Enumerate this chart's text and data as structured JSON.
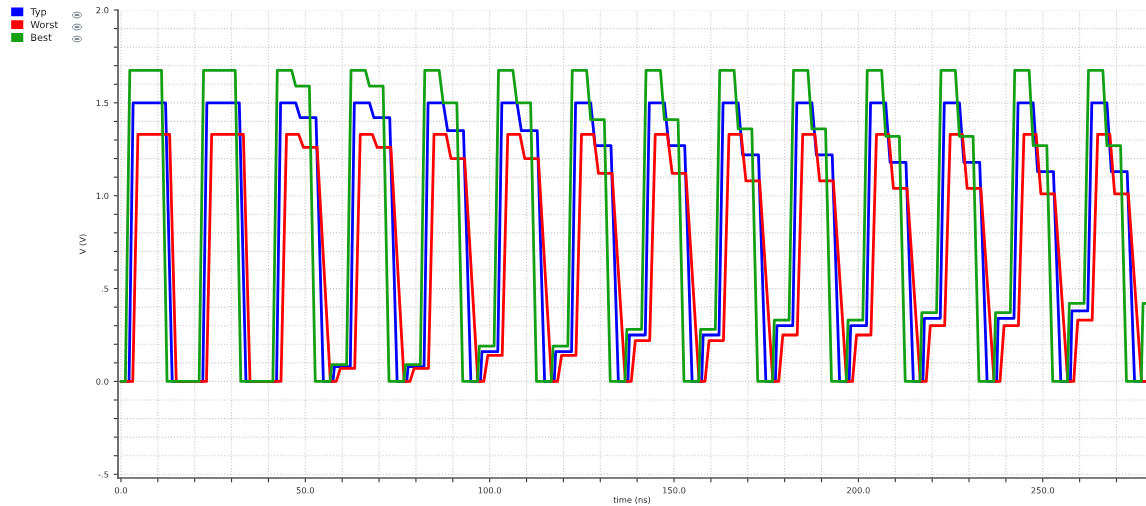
{
  "chart_data": {
    "type": "line",
    "xlabel": "time (ns)",
    "ylabel": "V (V)",
    "legend": "top left",
    "grid": true,
    "marker": "none",
    "line_style": "solid",
    "xlim": [
      -0.8,
      278
    ],
    "ylim": [
      -0.52,
      2.0
    ],
    "xticks": [
      {
        "value": 0,
        "label": "0.0"
      },
      {
        "value": 10,
        "label": null
      },
      {
        "value": 20,
        "label": null
      },
      {
        "value": 30,
        "label": null
      },
      {
        "value": 40,
        "label": null
      },
      {
        "value": 50,
        "label": "50.0"
      },
      {
        "value": 60,
        "label": null
      },
      {
        "value": 70,
        "label": null
      },
      {
        "value": 80,
        "label": null
      },
      {
        "value": 90,
        "label": null
      },
      {
        "value": 100,
        "label": "100.0"
      },
      {
        "value": 110,
        "label": null
      },
      {
        "value": 120,
        "label": null
      },
      {
        "value": 130,
        "label": null
      },
      {
        "value": 140,
        "label": null
      },
      {
        "value": 150,
        "label": "150.0"
      },
      {
        "value": 160,
        "label": null
      },
      {
        "value": 170,
        "label": null
      },
      {
        "value": 180,
        "label": null
      },
      {
        "value": 190,
        "label": null
      },
      {
        "value": 200,
        "label": "200.0"
      },
      {
        "value": 210,
        "label": null
      },
      {
        "value": 220,
        "label": null
      },
      {
        "value": 230,
        "label": null
      },
      {
        "value": 240,
        "label": null
      },
      {
        "value": 250,
        "label": "250.0"
      },
      {
        "value": 260,
        "label": null
      },
      {
        "value": 270,
        "label": null
      }
    ],
    "yticks": [
      {
        "value": -0.5,
        "label": "-.5"
      },
      {
        "value": -0.4,
        "label": null
      },
      {
        "value": -0.3,
        "label": null
      },
      {
        "value": -0.2,
        "label": null
      },
      {
        "value": -0.1,
        "label": null
      },
      {
        "value": 0,
        "label": "0.0"
      },
      {
        "value": 0.1,
        "label": null
      },
      {
        "value": 0.2,
        "label": null
      },
      {
        "value": 0.3,
        "label": null
      },
      {
        "value": 0.4,
        "label": null
      },
      {
        "value": 0.5,
        "label": ".5"
      },
      {
        "value": 0.6,
        "label": null
      },
      {
        "value": 0.7,
        "label": null
      },
      {
        "value": 0.8,
        "label": null
      },
      {
        "value": 0.9,
        "label": null
      },
      {
        "value": 1.0,
        "label": "1.0"
      },
      {
        "value": 1.1,
        "label": null
      },
      {
        "value": 1.2,
        "label": null
      },
      {
        "value": 1.3,
        "label": null
      },
      {
        "value": 1.4,
        "label": null
      },
      {
        "value": 1.5,
        "label": "1.5"
      },
      {
        "value": 1.6,
        "label": null
      },
      {
        "value": 1.7,
        "label": null
      },
      {
        "value": 1.8,
        "label": null
      },
      {
        "value": 1.9,
        "label": null
      },
      {
        "value": 2.0,
        "label": "2.0"
      }
    ],
    "series": [
      {
        "name": "Typ",
        "color": "#0000ff",
        "x": [
          0,
          2.2,
          3.3,
          12.1,
          13.9,
          22.2,
          23.3,
          32.1,
          33.9,
          42.2,
          43.3,
          47.4,
          48.6,
          52.9,
          54.9,
          57.5,
          57.9,
          62.2,
          63.3,
          67.4,
          68.6,
          72.9,
          74.9,
          77.5,
          77.9,
          82.2,
          83.3,
          87.4,
          88.6,
          92.9,
          94.9,
          97.5,
          97.9,
          102.2,
          103.3,
          107.4,
          108.6,
          112.9,
          114.9,
          117.5,
          117.9,
          122.2,
          123.3,
          127.4,
          128.6,
          132.9,
          134.9,
          137.5,
          137.9,
          142.2,
          143.3,
          147.4,
          148.6,
          152.9,
          154.9,
          157.5,
          157.9,
          162.2,
          163.3,
          167.4,
          168.6,
          172.9,
          174.9,
          177.5,
          177.9,
          182.2,
          183.3,
          187.4,
          188.6,
          192.9,
          194.9,
          197.5,
          197.9,
          202.2,
          203.3,
          207.4,
          208.6,
          212.9,
          214.9,
          217.5,
          217.9,
          222.2,
          223.3,
          227.4,
          228.6,
          232.9,
          234.9,
          237.5,
          237.9,
          242.2,
          243.3,
          247.4,
          248.6,
          252.9,
          254.9,
          257.5,
          257.9,
          262.2,
          263.3,
          267.4,
          268.6,
          272.9,
          274.9,
          278
        ],
        "values": [
          0,
          0,
          1.5,
          1.5,
          0,
          0,
          1.5,
          1.5,
          0,
          0,
          1.5,
          1.5,
          1.42,
          1.42,
          0,
          0,
          0.08,
          0.08,
          1.5,
          1.5,
          1.42,
          1.42,
          0,
          0,
          0.08,
          0.08,
          1.5,
          1.5,
          1.35,
          1.35,
          0,
          0,
          0.16,
          0.16,
          1.5,
          1.5,
          1.35,
          1.35,
          0,
          0,
          0.16,
          0.16,
          1.5,
          1.5,
          1.27,
          1.27,
          0,
          0,
          0.25,
          0.25,
          1.5,
          1.5,
          1.27,
          1.27,
          0,
          0,
          0.25,
          0.25,
          1.5,
          1.5,
          1.22,
          1.22,
          0,
          0,
          0.3,
          0.3,
          1.5,
          1.5,
          1.22,
          1.22,
          0,
          0,
          0.3,
          0.3,
          1.5,
          1.5,
          1.18,
          1.18,
          0,
          0,
          0.34,
          0.34,
          1.5,
          1.5,
          1.18,
          1.18,
          0,
          0,
          0.34,
          0.34,
          1.5,
          1.5,
          1.13,
          1.13,
          0,
          0,
          0.38,
          0.38,
          1.5,
          1.5,
          1.13,
          1.13,
          0,
          0
        ]
      },
      {
        "name": "Worst",
        "color": "#ff0000",
        "x": [
          0,
          3.2,
          4.6,
          13.2,
          15.0,
          23.2,
          24.6,
          33.2,
          35.0,
          43.4,
          44.9,
          48.2,
          49.5,
          53.2,
          56.8,
          58.4,
          59.5,
          63.4,
          64.9,
          68.2,
          69.5,
          73.2,
          76.8,
          78.4,
          79.5,
          83.4,
          84.9,
          88.2,
          89.5,
          93.2,
          96.8,
          98.4,
          99.5,
          103.4,
          104.9,
          108.2,
          109.5,
          113.2,
          116.8,
          118.4,
          119.5,
          123.4,
          124.9,
          128.2,
          129.5,
          133.2,
          136.8,
          138.4,
          139.5,
          143.4,
          144.9,
          148.2,
          149.5,
          153.2,
          156.8,
          158.4,
          159.5,
          163.4,
          164.9,
          168.2,
          169.5,
          173.2,
          176.8,
          178.4,
          179.5,
          183.4,
          184.9,
          188.2,
          189.5,
          193.2,
          196.8,
          198.4,
          199.5,
          203.4,
          204.9,
          208.2,
          209.5,
          213.2,
          216.8,
          218.4,
          219.5,
          223.4,
          224.9,
          228.2,
          229.5,
          233.2,
          236.8,
          238.4,
          239.5,
          243.4,
          244.9,
          248.2,
          249.5,
          253.2,
          256.8,
          258.4,
          259.5,
          263.4,
          264.9,
          268.2,
          269.5,
          273.2,
          276.8,
          278
        ],
        "values": [
          0,
          0,
          1.33,
          1.33,
          0,
          0,
          1.33,
          1.33,
          0,
          0,
          1.33,
          1.33,
          1.26,
          1.26,
          0,
          0,
          0.07,
          0.07,
          1.33,
          1.33,
          1.26,
          1.26,
          0,
          0,
          0.07,
          0.07,
          1.33,
          1.33,
          1.2,
          1.2,
          0,
          0,
          0.14,
          0.14,
          1.33,
          1.33,
          1.2,
          1.2,
          0,
          0,
          0.14,
          0.14,
          1.33,
          1.33,
          1.12,
          1.12,
          0,
          0,
          0.22,
          0.22,
          1.33,
          1.33,
          1.12,
          1.12,
          0,
          0,
          0.22,
          0.22,
          1.33,
          1.33,
          1.08,
          1.08,
          0,
          0,
          0.25,
          0.25,
          1.33,
          1.33,
          1.08,
          1.08,
          0,
          0,
          0.25,
          0.25,
          1.33,
          1.33,
          1.04,
          1.04,
          0,
          0,
          0.3,
          0.3,
          1.33,
          1.33,
          1.04,
          1.04,
          0,
          0,
          0.3,
          0.3,
          1.33,
          1.33,
          1.01,
          1.01,
          0,
          0,
          0.33,
          0.33,
          1.33,
          1.33,
          1.01,
          1.01,
          0,
          0
        ]
      },
      {
        "name": "Best",
        "color": "#14a014",
        "x": [
          0,
          1.2,
          2.4,
          11.0,
          12.5,
          21.2,
          22.4,
          31.0,
          32.5,
          41.2,
          42.4,
          46.3,
          47.4,
          51.1,
          52.7,
          56.7,
          57.2,
          61.2,
          62.4,
          66.3,
          67.4,
          71.1,
          72.7,
          76.7,
          77.2,
          81.2,
          82.4,
          86.3,
          87.4,
          91.1,
          92.7,
          96.7,
          97.2,
          101.2,
          102.4,
          106.3,
          107.4,
          111.1,
          112.7,
          116.7,
          117.2,
          121.2,
          122.4,
          126.3,
          127.4,
          131.1,
          132.7,
          136.7,
          137.2,
          141.2,
          142.4,
          146.3,
          147.4,
          151.1,
          152.7,
          156.7,
          157.2,
          161.2,
          162.4,
          166.3,
          167.4,
          171.1,
          172.7,
          176.7,
          177.2,
          181.2,
          182.4,
          186.3,
          187.4,
          191.1,
          192.7,
          196.7,
          197.2,
          201.2,
          202.4,
          206.3,
          207.4,
          211.1,
          212.7,
          216.7,
          217.2,
          221.2,
          222.4,
          226.3,
          227.4,
          231.1,
          232.7,
          236.7,
          237.2,
          241.2,
          242.4,
          246.3,
          247.4,
          251.1,
          252.7,
          256.7,
          257.2,
          261.2,
          262.4,
          266.3,
          267.4,
          271.1,
          272.7,
          276.7,
          277.2,
          278
        ],
        "values": [
          0,
          0,
          1.675,
          1.675,
          0,
          0,
          1.675,
          1.675,
          0,
          0,
          1.675,
          1.675,
          1.59,
          1.59,
          0,
          0,
          0.09,
          0.09,
          1.675,
          1.675,
          1.59,
          1.59,
          0,
          0,
          0.09,
          0.09,
          1.675,
          1.675,
          1.5,
          1.5,
          0,
          0,
          0.19,
          0.19,
          1.675,
          1.675,
          1.5,
          1.5,
          0,
          0,
          0.19,
          0.19,
          1.675,
          1.675,
          1.41,
          1.41,
          0,
          0,
          0.28,
          0.28,
          1.675,
          1.675,
          1.41,
          1.41,
          0,
          0,
          0.28,
          0.28,
          1.675,
          1.675,
          1.36,
          1.36,
          0,
          0,
          0.33,
          0.33,
          1.675,
          1.675,
          1.36,
          1.36,
          0,
          0,
          0.33,
          0.33,
          1.675,
          1.675,
          1.32,
          1.32,
          0,
          0,
          0.37,
          0.37,
          1.675,
          1.675,
          1.32,
          1.32,
          0,
          0,
          0.37,
          0.37,
          1.675,
          1.675,
          1.27,
          1.27,
          0,
          0,
          0.42,
          0.42,
          1.675,
          1.675,
          1.27,
          1.27,
          0,
          0,
          0.42,
          0.42
        ]
      }
    ]
  }
}
